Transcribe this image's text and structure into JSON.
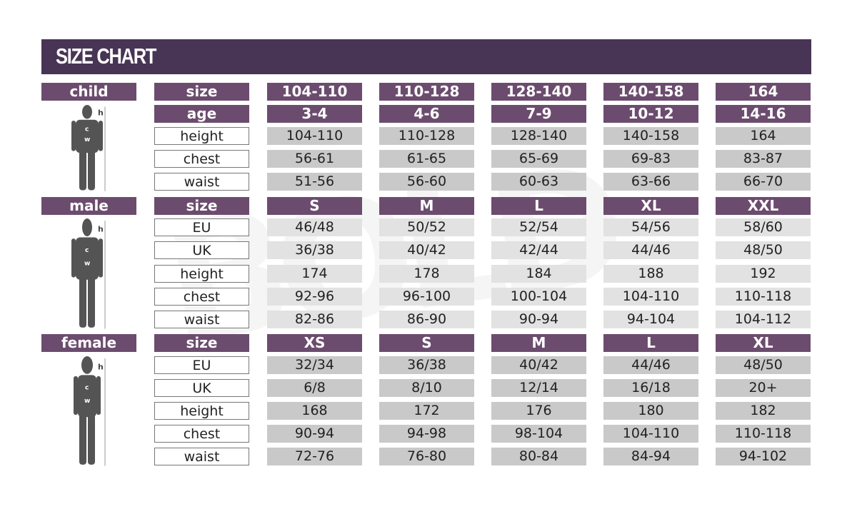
{
  "title": "SIZE CHART",
  "colors": {
    "header": "#483455",
    "label_bg": "#6c4c6e",
    "cell_dark": "#c9c9c9",
    "cell_light": "#e2e2e2"
  },
  "sections": [
    {
      "name": "child",
      "figure_icon": "child-silhouette-icon",
      "figure_labels": [
        "h",
        "c",
        "w"
      ],
      "rows": [
        {
          "label": "size",
          "header": true,
          "values": [
            "104-110",
            "110-128",
            "128-140",
            "140-158",
            "164"
          ]
        },
        {
          "label": "age",
          "header": true,
          "values": [
            "3-4",
            "4-6",
            "7-9",
            "10-12",
            "14-16"
          ]
        },
        {
          "label": "height",
          "values": [
            "104-110",
            "110-128",
            "128-140",
            "140-158",
            "164"
          ]
        },
        {
          "label": "chest",
          "values": [
            "56-61",
            "61-65",
            "65-69",
            "69-83",
            "83-87"
          ]
        },
        {
          "label": "waist",
          "values": [
            "51-56",
            "56-60",
            "60-63",
            "63-66",
            "66-70"
          ]
        }
      ]
    },
    {
      "name": "male",
      "figure_icon": "male-silhouette-icon",
      "figure_labels": [
        "h",
        "c",
        "w"
      ],
      "rows": [
        {
          "label": "size",
          "header": true,
          "values": [
            "S",
            "M",
            "L",
            "XL",
            "XXL"
          ]
        },
        {
          "label": "EU",
          "values": [
            "46/48",
            "50/52",
            "52/54",
            "54/56",
            "58/60"
          ]
        },
        {
          "label": "UK",
          "values": [
            "36/38",
            "40/42",
            "42/44",
            "44/46",
            "48/50"
          ]
        },
        {
          "label": "height",
          "values": [
            "174",
            "178",
            "184",
            "188",
            "192"
          ]
        },
        {
          "label": "chest",
          "values": [
            "92-96",
            "96-100",
            "100-104",
            "104-110",
            "110-118"
          ]
        },
        {
          "label": "waist",
          "values": [
            "82-86",
            "86-90",
            "90-94",
            "94-104",
            "104-112"
          ]
        }
      ]
    },
    {
      "name": "female",
      "figure_icon": "female-silhouette-icon",
      "figure_labels": [
        "h",
        "c",
        "w"
      ],
      "rows": [
        {
          "label": "size",
          "header": true,
          "values": [
            "XS",
            "S",
            "M",
            "L",
            "XL"
          ]
        },
        {
          "label": "EU",
          "values": [
            "32/34",
            "36/38",
            "40/42",
            "44/46",
            "48/50"
          ]
        },
        {
          "label": "UK",
          "values": [
            "6/8",
            "8/10",
            "12/14",
            "16/18",
            "20+"
          ]
        },
        {
          "label": "height",
          "values": [
            "168",
            "172",
            "176",
            "180",
            "182"
          ]
        },
        {
          "label": "chest",
          "values": [
            "90-94",
            "94-98",
            "98-104",
            "104-110",
            "110-118"
          ]
        },
        {
          "label": "waist",
          "values": [
            "72-76",
            "76-80",
            "80-84",
            "84-94",
            "94-102"
          ]
        }
      ]
    }
  ]
}
